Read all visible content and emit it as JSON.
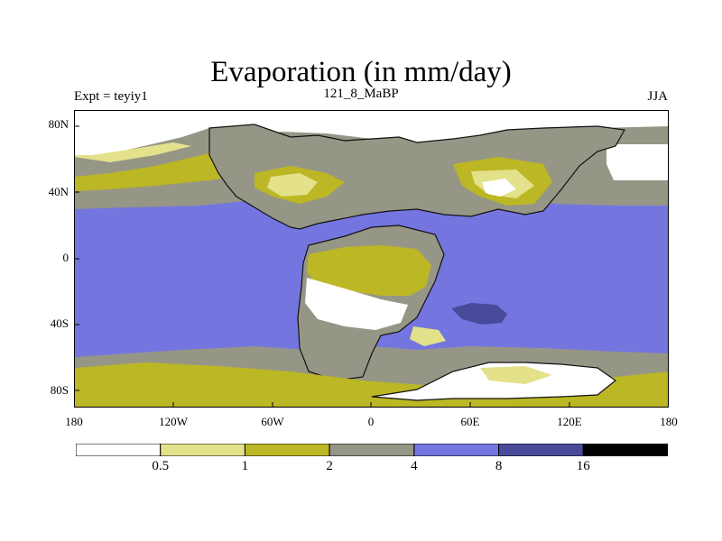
{
  "title": "Evaporation (in mm/day)",
  "experiment": "Expt = teyiy1",
  "period": "121_8_MaBP",
  "season": "JJA",
  "map": {
    "projection": "cylindrical equidistant",
    "lon_range": [
      -180,
      180
    ],
    "lat_range": [
      -90,
      90
    ],
    "lat_tick_labels": [
      "80N",
      "40N",
      "0",
      "40S",
      "80S"
    ],
    "lon_tick_labels": [
      "180",
      "120W",
      "60W",
      "0",
      "60E",
      "120E",
      "180"
    ],
    "field_legend": [
      {
        "range": "< 0.5",
        "color": "#ffffff"
      },
      {
        "range": "0.5 – 1",
        "color": "#e3e18a"
      },
      {
        "range": "1 – 2",
        "color": "#bcb724"
      },
      {
        "range": "2 – 4",
        "color": "#969686"
      },
      {
        "range": "4 – 8",
        "color": "#7575e0"
      },
      {
        "range": "8 – 16",
        "color": "#4a4a9a"
      },
      {
        "range": "> 16",
        "color": "#000000"
      }
    ]
  },
  "colorbar": {
    "boundaries": [
      "0.5",
      "1",
      "2",
      "4",
      "8",
      "16"
    ],
    "colors": [
      "#ffffff",
      "#e3e18a",
      "#bcb724",
      "#969686",
      "#7575e0",
      "#4a4a9a",
      "#000000"
    ]
  }
}
